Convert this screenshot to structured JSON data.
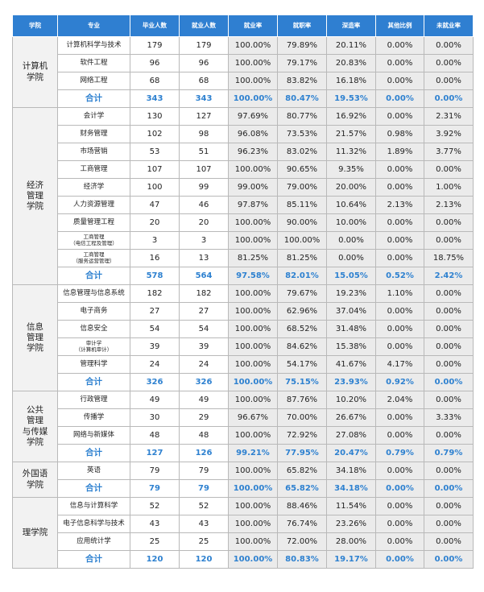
{
  "headers": [
    "学院",
    "专业",
    "毕业人数",
    "就业人数",
    "就业率",
    "就职率",
    "深造率",
    "其他比例",
    "未就业率"
  ],
  "colleges": [
    {
      "name": [
        "计算机",
        "学院"
      ],
      "rows": [
        {
          "major": [
            "计算机科学与技术"
          ],
          "grads": "179",
          "employed": "179",
          "emp_rate": "100.00%",
          "job_rate": "79.89%",
          "study_rate": "20.11%",
          "other": "0.00%",
          "unemp": "0.00%"
        },
        {
          "major": [
            "软件工程"
          ],
          "grads": "96",
          "employed": "96",
          "emp_rate": "100.00%",
          "job_rate": "79.17%",
          "study_rate": "20.83%",
          "other": "0.00%",
          "unemp": "0.00%"
        },
        {
          "major": [
            "网络工程"
          ],
          "grads": "68",
          "employed": "68",
          "emp_rate": "100.00%",
          "job_rate": "83.82%",
          "study_rate": "16.18%",
          "other": "0.00%",
          "unemp": "0.00%"
        }
      ],
      "total": {
        "label": "合计",
        "grads": "343",
        "employed": "343",
        "emp_rate": "100.00%",
        "job_rate": "80.47%",
        "study_rate": "19.53%",
        "other": "0.00%",
        "unemp": "0.00%"
      }
    },
    {
      "name": [
        "经济",
        "管理",
        "学院"
      ],
      "rows": [
        {
          "major": [
            "会计学"
          ],
          "grads": "130",
          "employed": "127",
          "emp_rate": "97.69%",
          "job_rate": "80.77%",
          "study_rate": "16.92%",
          "other": "0.00%",
          "unemp": "2.31%"
        },
        {
          "major": [
            "财务管理"
          ],
          "grads": "102",
          "employed": "98",
          "emp_rate": "96.08%",
          "job_rate": "73.53%",
          "study_rate": "21.57%",
          "other": "0.98%",
          "unemp": "3.92%"
        },
        {
          "major": [
            "市场营销"
          ],
          "grads": "53",
          "employed": "51",
          "emp_rate": "96.23%",
          "job_rate": "83.02%",
          "study_rate": "11.32%",
          "other": "1.89%",
          "unemp": "3.77%"
        },
        {
          "major": [
            "工商管理"
          ],
          "grads": "107",
          "employed": "107",
          "emp_rate": "100.00%",
          "job_rate": "90.65%",
          "study_rate": "9.35%",
          "other": "0.00%",
          "unemp": "0.00%"
        },
        {
          "major": [
            "经济学"
          ],
          "grads": "100",
          "employed": "99",
          "emp_rate": "99.00%",
          "job_rate": "79.00%",
          "study_rate": "20.00%",
          "other": "0.00%",
          "unemp": "1.00%"
        },
        {
          "major": [
            "人力资源管理"
          ],
          "grads": "47",
          "employed": "46",
          "emp_rate": "97.87%",
          "job_rate": "85.11%",
          "study_rate": "10.64%",
          "other": "2.13%",
          "unemp": "2.13%"
        },
        {
          "major": [
            "质量管理工程"
          ],
          "grads": "20",
          "employed": "20",
          "emp_rate": "100.00%",
          "job_rate": "90.00%",
          "study_rate": "10.00%",
          "other": "0.00%",
          "unemp": "0.00%"
        },
        {
          "major": [
            "工商管理",
            "（电信工程及管理）"
          ],
          "grads": "3",
          "employed": "3",
          "emp_rate": "100.00%",
          "job_rate": "100.00%",
          "study_rate": "0.00%",
          "other": "0.00%",
          "unemp": "0.00%"
        },
        {
          "major": [
            "工商管理",
            "（服务运营管理）"
          ],
          "grads": "16",
          "employed": "13",
          "emp_rate": "81.25%",
          "job_rate": "81.25%",
          "study_rate": "0.00%",
          "other": "0.00%",
          "unemp": "18.75%"
        }
      ],
      "total": {
        "label": "合计",
        "grads": "578",
        "employed": "564",
        "emp_rate": "97.58%",
        "job_rate": "82.01%",
        "study_rate": "15.05%",
        "other": "0.52%",
        "unemp": "2.42%"
      }
    },
    {
      "name": [
        "信息",
        "管理",
        "学院"
      ],
      "rows": [
        {
          "major": [
            "信息管理与信息系统"
          ],
          "grads": "182",
          "employed": "182",
          "emp_rate": "100.00%",
          "job_rate": "79.67%",
          "study_rate": "19.23%",
          "other": "1.10%",
          "unemp": "0.00%"
        },
        {
          "major": [
            "电子商务"
          ],
          "grads": "27",
          "employed": "27",
          "emp_rate": "100.00%",
          "job_rate": "62.96%",
          "study_rate": "37.04%",
          "other": "0.00%",
          "unemp": "0.00%"
        },
        {
          "major": [
            "信息安全"
          ],
          "grads": "54",
          "employed": "54",
          "emp_rate": "100.00%",
          "job_rate": "68.52%",
          "study_rate": "31.48%",
          "other": "0.00%",
          "unemp": "0.00%"
        },
        {
          "major": [
            "审计学",
            "（计算机审计）"
          ],
          "grads": "39",
          "employed": "39",
          "emp_rate": "100.00%",
          "job_rate": "84.62%",
          "study_rate": "15.38%",
          "other": "0.00%",
          "unemp": "0.00%"
        },
        {
          "major": [
            "管理科学"
          ],
          "grads": "24",
          "employed": "24",
          "emp_rate": "100.00%",
          "job_rate": "54.17%",
          "study_rate": "41.67%",
          "other": "4.17%",
          "unemp": "0.00%"
        }
      ],
      "total": {
        "label": "合计",
        "grads": "326",
        "employed": "326",
        "emp_rate": "100.00%",
        "job_rate": "75.15%",
        "study_rate": "23.93%",
        "other": "0.92%",
        "unemp": "0.00%"
      }
    },
    {
      "name": [
        "公共",
        "管理",
        "与传媒",
        "学院"
      ],
      "rows": [
        {
          "major": [
            "行政管理"
          ],
          "grads": "49",
          "employed": "49",
          "emp_rate": "100.00%",
          "job_rate": "87.76%",
          "study_rate": "10.20%",
          "other": "2.04%",
          "unemp": "0.00%"
        },
        {
          "major": [
            "传播学"
          ],
          "grads": "30",
          "employed": "29",
          "emp_rate": "96.67%",
          "job_rate": "70.00%",
          "study_rate": "26.67%",
          "other": "0.00%",
          "unemp": "3.33%"
        },
        {
          "major": [
            "网络与新媒体"
          ],
          "grads": "48",
          "employed": "48",
          "emp_rate": "100.00%",
          "job_rate": "72.92%",
          "study_rate": "27.08%",
          "other": "0.00%",
          "unemp": "0.00%"
        }
      ],
      "total": {
        "label": "合计",
        "grads": "127",
        "employed": "126",
        "emp_rate": "99.21%",
        "job_rate": "77.95%",
        "study_rate": "20.47%",
        "other": "0.79%",
        "unemp": "0.79%"
      }
    },
    {
      "name": [
        "外国语",
        "学院"
      ],
      "rows": [
        {
          "major": [
            "英语"
          ],
          "grads": "79",
          "employed": "79",
          "emp_rate": "100.00%",
          "job_rate": "65.82%",
          "study_rate": "34.18%",
          "other": "0.00%",
          "unemp": "0.00%"
        }
      ],
      "total": {
        "label": "合计",
        "grads": "79",
        "employed": "79",
        "emp_rate": "100.00%",
        "job_rate": "65.82%",
        "study_rate": "34.18%",
        "other": "0.00%",
        "unemp": "0.00%"
      }
    },
    {
      "name": [
        "理学院"
      ],
      "rows": [
        {
          "major": [
            "信息与计算科学"
          ],
          "grads": "52",
          "employed": "52",
          "emp_rate": "100.00%",
          "job_rate": "88.46%",
          "study_rate": "11.54%",
          "other": "0.00%",
          "unemp": "0.00%"
        },
        {
          "major": [
            "电子信息科学与技术"
          ],
          "grads": "43",
          "employed": "43",
          "emp_rate": "100.00%",
          "job_rate": "76.74%",
          "study_rate": "23.26%",
          "other": "0.00%",
          "unemp": "0.00%"
        },
        {
          "major": [
            "应用统计学"
          ],
          "grads": "25",
          "employed": "25",
          "emp_rate": "100.00%",
          "job_rate": "72.00%",
          "study_rate": "28.00%",
          "other": "0.00%",
          "unemp": "0.00%"
        }
      ],
      "total": {
        "label": "合计",
        "grads": "120",
        "employed": "120",
        "emp_rate": "100.00%",
        "job_rate": "80.83%",
        "study_rate": "19.17%",
        "other": "0.00%",
        "unemp": "0.00%"
      }
    }
  ]
}
